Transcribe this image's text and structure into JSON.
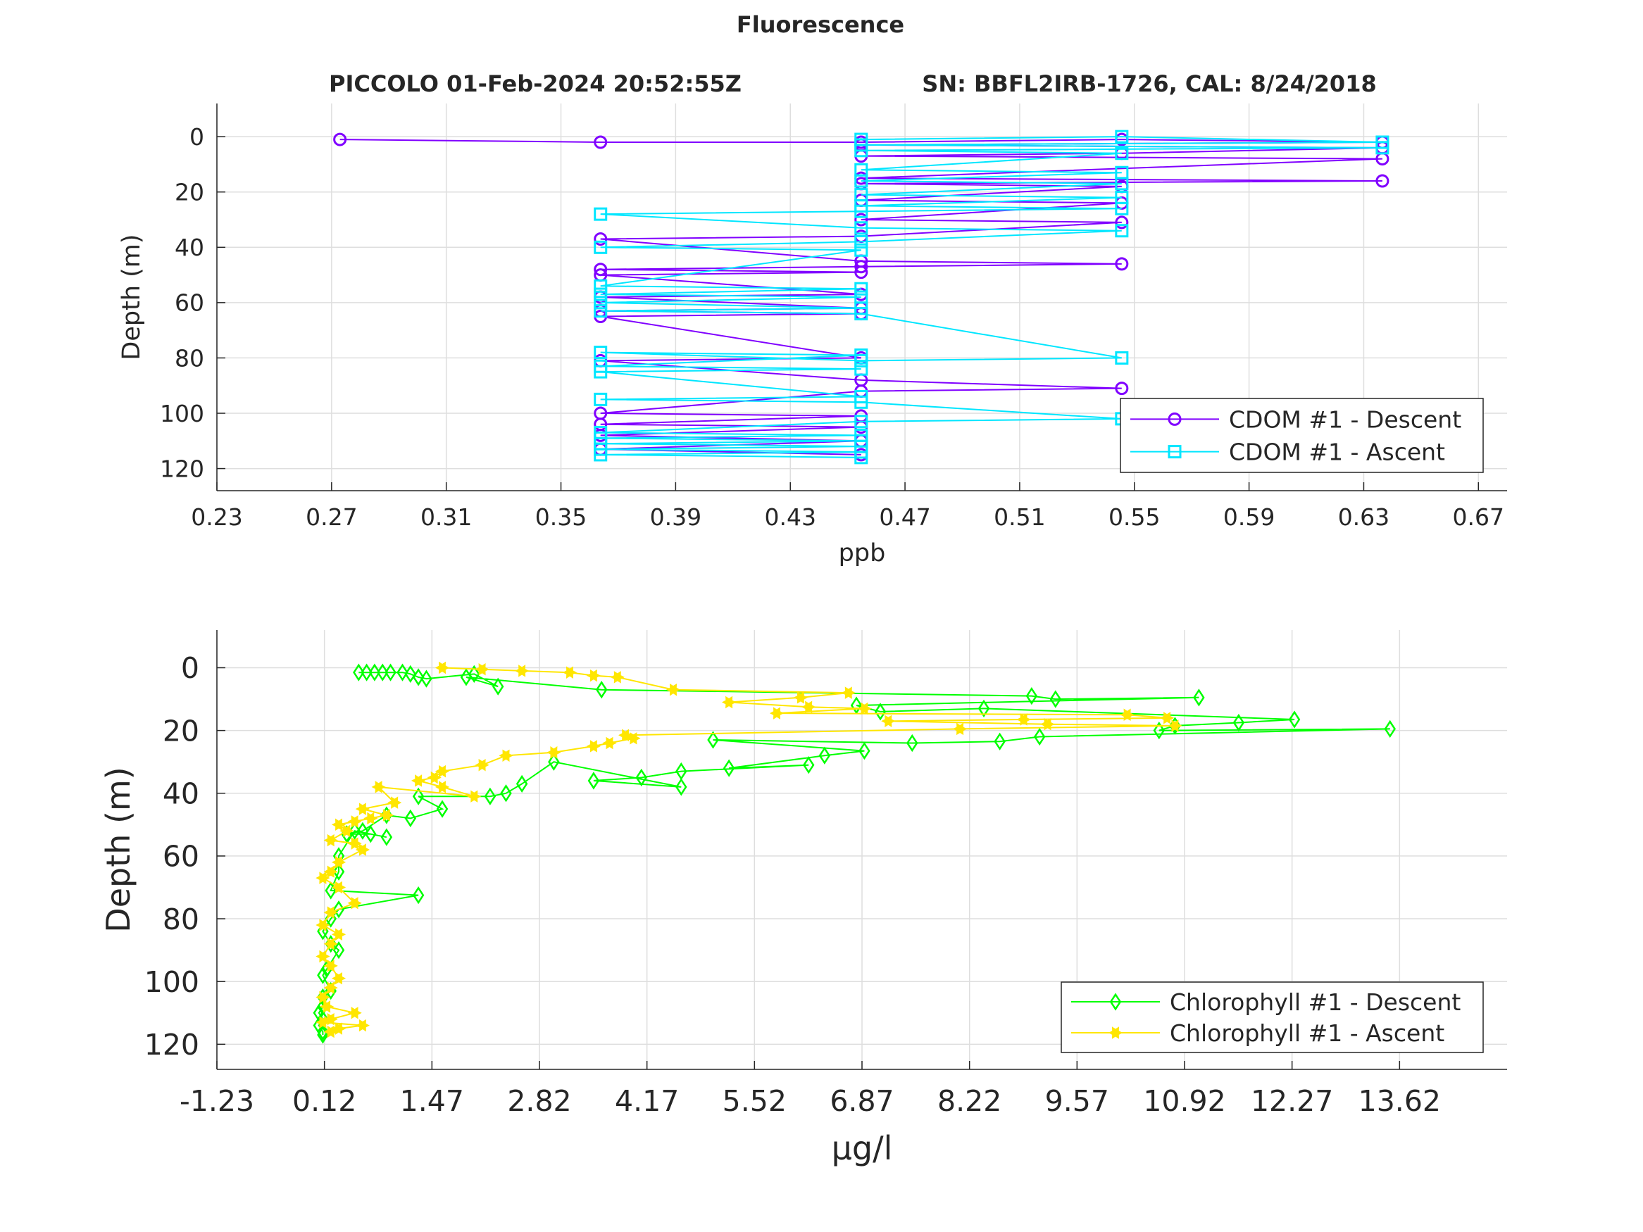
{
  "figure": {
    "title": "Fluorescence",
    "subtitle_left": "PICCOLO 01-Feb-2024 20:52:55Z",
    "subtitle_right": "SN: BBFL2IRB-1726, CAL: 8/24/2018"
  },
  "colors": {
    "cdom_descent": "#8000ff",
    "cdom_ascent": "#00e6ff",
    "chl_descent": "#00ff00",
    "chl_ascent": "#ffe600",
    "grid": "#dedede",
    "axis": "#262626"
  },
  "chart_data": [
    {
      "type": "line",
      "xlabel": "ppb",
      "ylabel": "Depth (m)",
      "xlim": [
        0.23,
        0.68
      ],
      "ylim": [
        -12,
        128
      ],
      "y_reversed": true,
      "xticks": [
        "0.23",
        "0.27",
        "0.31",
        "0.35",
        "0.39",
        "0.43",
        "0.47",
        "0.51",
        "0.55",
        "0.59",
        "0.63",
        "0.67"
      ],
      "yticks": [
        "0",
        "20",
        "40",
        "60",
        "80",
        "100",
        "120"
      ],
      "grid": true,
      "legend_position": "bottom-right",
      "series": [
        {
          "name": "CDOM #1 - Descent",
          "marker": "circle",
          "x": [
            0.2729,
            0.3638,
            0.4547,
            0.5456,
            0.6365,
            0.4547,
            0.6365,
            0.5456,
            0.4547,
            0.6365,
            0.4547,
            0.6365,
            0.4547,
            0.5456,
            0.4547,
            0.5456,
            0.4547,
            0.5456,
            0.4547,
            0.3638,
            0.4547,
            0.5456,
            0.4547,
            0.3638,
            0.4547,
            0.3638,
            0.4547,
            0.3638,
            0.4547,
            0.3638,
            0.4547,
            0.3638,
            0.4547,
            0.3638,
            0.4547,
            0.5456,
            0.4547,
            0.3638,
            0.4547,
            0.3638,
            0.4547,
            0.3638,
            0.4547,
            0.3638,
            0.4547
          ],
          "y": [
            1,
            2,
            2,
            1,
            2,
            3,
            4,
            6,
            7,
            8,
            15,
            16,
            17,
            18,
            23,
            24,
            30,
            31,
            36,
            37,
            45,
            46,
            47,
            48,
            49,
            50,
            57,
            58,
            62,
            63,
            64,
            65,
            80,
            81,
            88,
            91,
            92,
            100,
            101,
            104,
            105,
            108,
            110,
            113,
            115
          ]
        },
        {
          "name": "CDOM #1 - Ascent",
          "marker": "square",
          "x": [
            0.4547,
            0.5456,
            0.6365,
            0.4547,
            0.6365,
            0.4547,
            0.5456,
            0.4547,
            0.5456,
            0.4547,
            0.5456,
            0.4547,
            0.5456,
            0.4547,
            0.5456,
            0.4547,
            0.3638,
            0.4547,
            0.5456,
            0.4547,
            0.3638,
            0.4547,
            0.3638,
            0.4547,
            0.3638,
            0.4547,
            0.3638,
            0.4547,
            0.3638,
            0.4547,
            0.5456,
            0.4547,
            0.3638,
            0.4547,
            0.3638,
            0.4547,
            0.3638,
            0.4547,
            0.3638,
            0.4547,
            0.5456,
            0.4547,
            0.3638,
            0.4547,
            0.3638,
            0.4547,
            0.3638,
            0.4547,
            0.3638,
            0.4547,
            0.3638,
            0.4547
          ],
          "y": [
            1,
            0,
            2,
            3,
            4,
            5,
            6,
            12,
            13,
            16,
            17,
            21,
            22,
            25,
            26,
            27,
            28,
            33,
            34,
            38,
            40,
            41,
            54,
            55,
            57,
            58,
            60,
            62,
            63,
            64,
            80,
            81,
            78,
            79,
            83,
            84,
            85,
            94,
            95,
            96,
            102,
            103,
            107,
            108,
            109,
            110,
            111,
            112,
            113,
            114,
            115,
            116
          ]
        }
      ]
    },
    {
      "type": "line",
      "xlabel": "µg/l",
      "ylabel": "Depth (m)",
      "xlim": [
        -1.23,
        14.97
      ],
      "ylim": [
        -12,
        128
      ],
      "y_reversed": true,
      "xticks": [
        "-1.23",
        "0.12",
        "1.47",
        "2.82",
        "4.17",
        "5.52",
        "6.87",
        "8.22",
        "9.57",
        "10.92",
        "12.27",
        "13.62"
      ],
      "yticks": [
        "0",
        "20",
        "40",
        "60",
        "80",
        "100",
        "120"
      ],
      "grid": true,
      "legend_position": "bottom-right",
      "series": [
        {
          "name": "Chlorophyll #1 - Descent",
          "marker": "diamond",
          "x": [
            0.55,
            0.65,
            0.75,
            0.85,
            0.95,
            1.1,
            1.2,
            1.3,
            1.4,
            2.0,
            2.3,
            1.9,
            3.6,
            9.0,
            9.3,
            11.1,
            6.8,
            7.1,
            8.4,
            12.3,
            11.6,
            10.8,
            10.6,
            13.5,
            9.1,
            8.6,
            7.5,
            5.0,
            6.9,
            6.4,
            5.2,
            6.2,
            4.6,
            4.1,
            3.5,
            4.6,
            3.0,
            2.6,
            2.4,
            2.2,
            1.3,
            1.6,
            1.2,
            0.9,
            0.6,
            0.4,
            0.7,
            0.9,
            0.5,
            0.3,
            0.3,
            0.2,
            1.3,
            0.3,
            0.2,
            0.1,
            0.2,
            0.3,
            0.15,
            0.1,
            0.2,
            0.1,
            0.1,
            0.05,
            0.1,
            0.05,
            0.1,
            0.1
          ],
          "y": [
            1.5,
            1.5,
            1.5,
            1.5,
            1.5,
            1.5,
            2,
            3,
            3.5,
            2,
            6,
            3,
            7,
            9,
            10,
            9.5,
            12,
            14,
            13,
            16.5,
            17.5,
            18.5,
            20,
            19.5,
            22,
            23.5,
            24,
            23,
            26.5,
            28,
            32,
            31,
            33,
            35,
            36,
            38,
            30,
            37,
            40,
            41,
            41,
            45,
            48,
            47,
            52,
            53,
            53,
            54,
            52,
            60,
            65,
            71,
            72.5,
            77,
            80,
            84,
            88,
            90,
            96,
            98,
            103,
            105,
            108,
            110,
            112,
            114,
            116,
            117
          ]
        },
        {
          "name": "Chlorophyll #1 - Ascent",
          "marker": "star",
          "x": [
            1.6,
            2.1,
            2.6,
            3.2,
            3.5,
            3.8,
            4.5,
            6.7,
            6.1,
            5.2,
            6.2,
            6.9,
            5.8,
            10.2,
            10.7,
            8.9,
            7.2,
            9.2,
            10.8,
            8.1,
            3.9,
            4.0,
            3.7,
            3.5,
            3.0,
            2.4,
            2.1,
            1.6,
            1.5,
            1.3,
            1.6,
            2.0,
            0.8,
            1.0,
            0.6,
            0.9,
            0.7,
            0.5,
            0.3,
            0.4,
            0.2,
            0.5,
            0.6,
            0.3,
            0.2,
            0.1,
            0.3,
            0.5,
            0.2,
            0.1,
            0.3,
            0.2,
            0.1,
            0.2,
            0.3,
            0.2,
            0.1,
            0.15,
            0.5,
            0.2,
            0.1,
            0.6,
            0.3,
            0.2
          ],
          "y": [
            0,
            0.5,
            1,
            1.5,
            2.5,
            3,
            7,
            8,
            9.5,
            11,
            12.5,
            13,
            14.5,
            15,
            16,
            16.5,
            17,
            18,
            18.5,
            19.5,
            21.5,
            22.5,
            24,
            25,
            27,
            28,
            31,
            33,
            35,
            36,
            38,
            41,
            38,
            43,
            45,
            47,
            48,
            49,
            50,
            52,
            55,
            56,
            58,
            62,
            65,
            67,
            70,
            75,
            78,
            82,
            85,
            88,
            92,
            95,
            99,
            102,
            105,
            108,
            110,
            112,
            113,
            114,
            115,
            116
          ]
        }
      ]
    }
  ]
}
